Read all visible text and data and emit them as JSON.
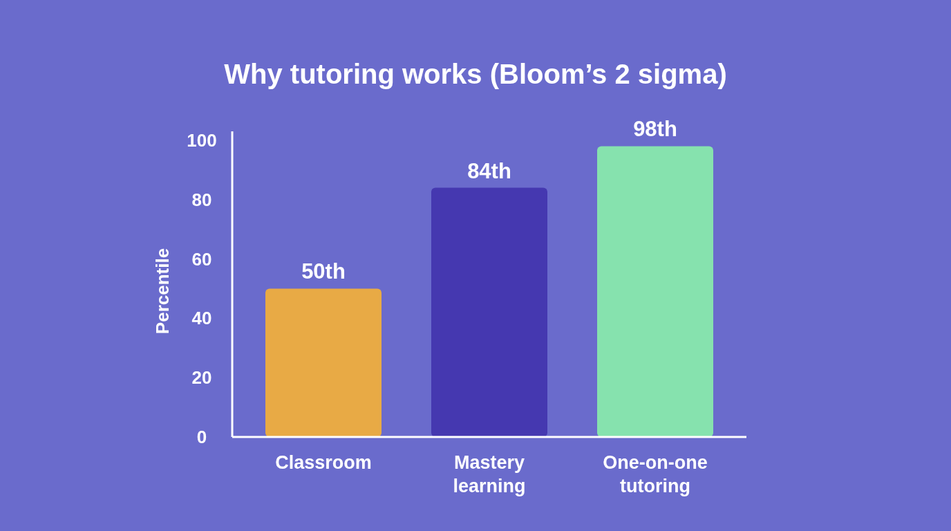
{
  "chart_data": {
    "type": "bar",
    "title": "Why tutoring works (Bloom’s 2 sigma)",
    "ylabel": "Percentile",
    "categories": [
      "Classroom",
      "Mastery learning",
      "One-on-one tutoring"
    ],
    "values": [
      50,
      84,
      98
    ],
    "colors": [
      "#e8aa45",
      "#4538b0",
      "#86e2ae"
    ],
    "value_labels": [
      "50th",
      "84th",
      "98th"
    ],
    "ylim": [
      0,
      103
    ],
    "yticks": [
      0,
      20,
      40,
      60,
      80,
      100
    ],
    "grid": false
  }
}
